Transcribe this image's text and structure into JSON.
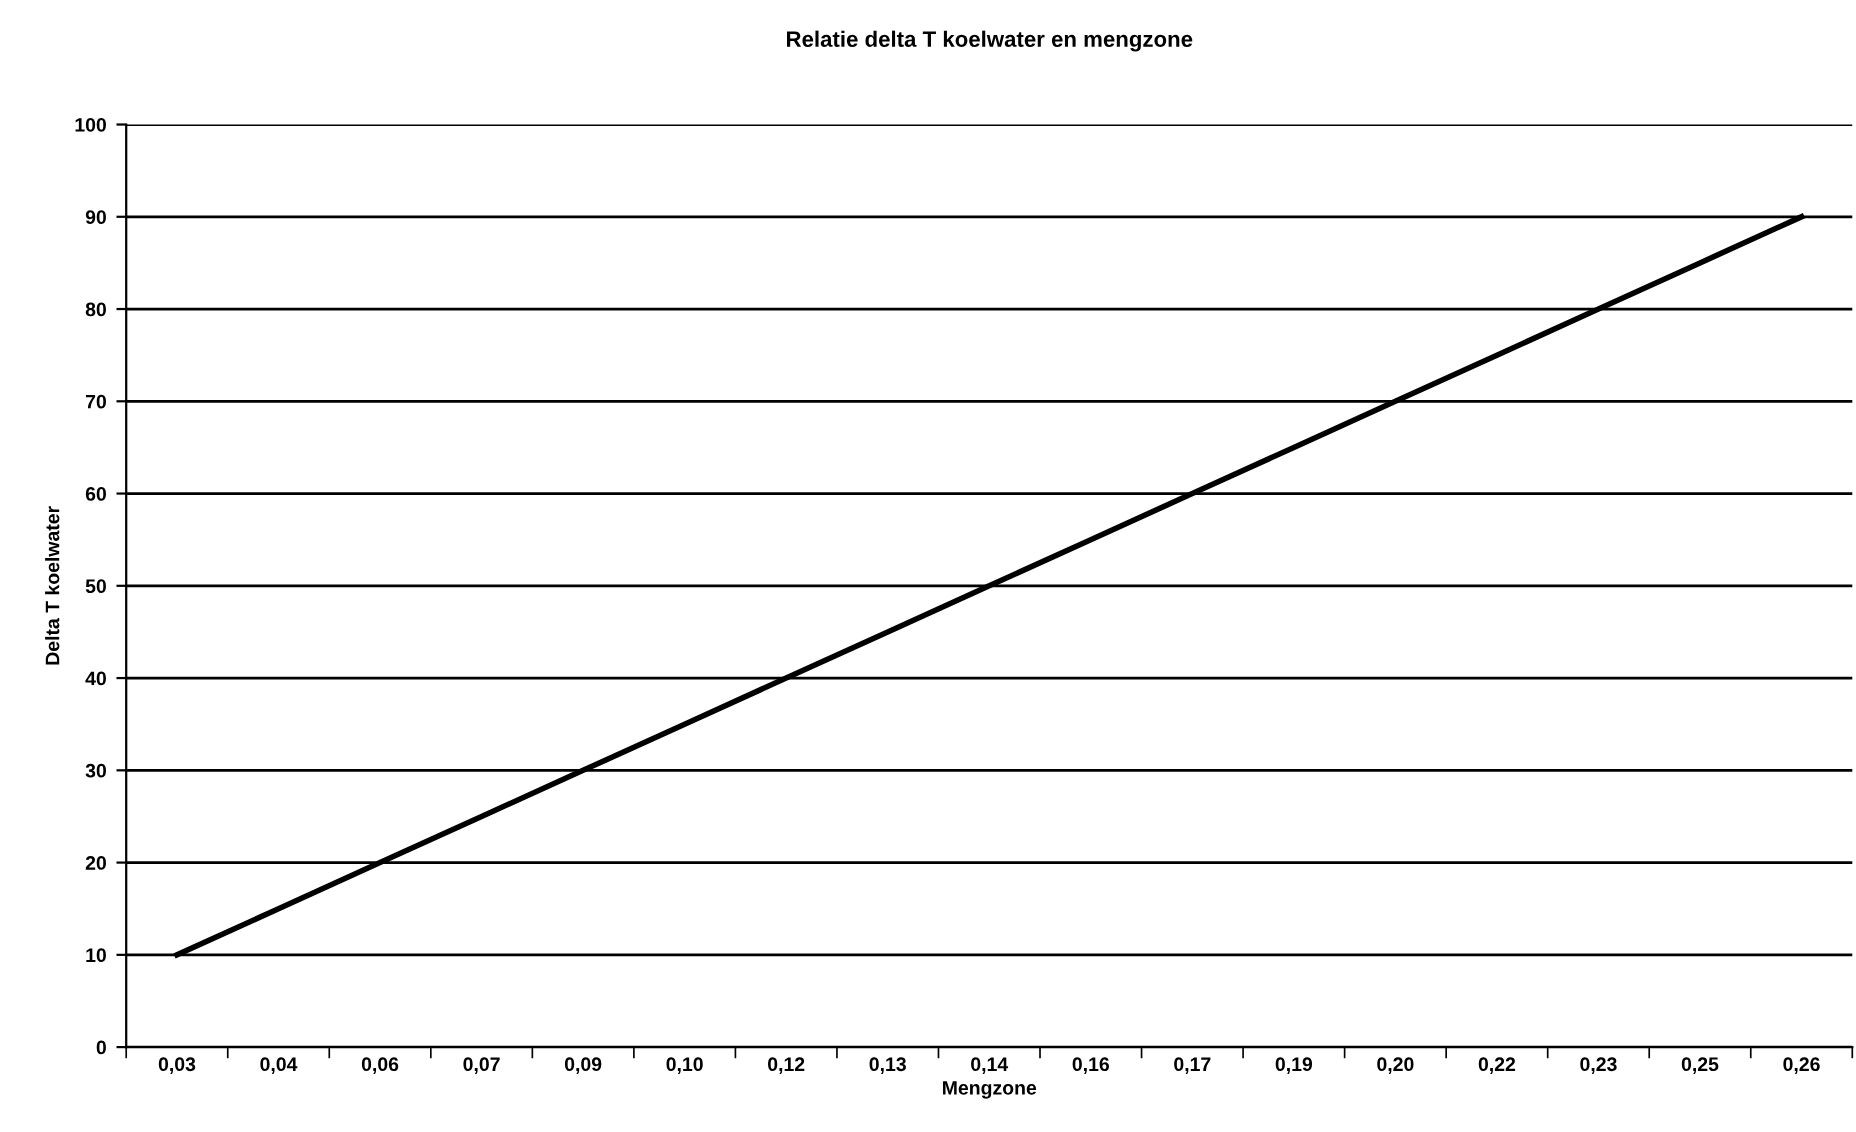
{
  "chart_data": {
    "type": "line",
    "title": "Relatie delta T koelwater en mengzone",
    "xlabel": "Mengzone",
    "ylabel": "Delta T koelwater",
    "categories": [
      "0,03",
      "0,04",
      "0,06",
      "0,07",
      "0,09",
      "0,10",
      "0,12",
      "0,13",
      "0,14",
      "0,16",
      "0,17",
      "0,19",
      "0,20",
      "0,22",
      "0,23",
      "0,25",
      "0,26"
    ],
    "series": [
      {
        "color": "#000000",
        "values": [
          10,
          15,
          20,
          25,
          30,
          35,
          40,
          45,
          50,
          55,
          60,
          65,
          70,
          75,
          80,
          85,
          90
        ]
      }
    ],
    "ylim": [
      0,
      100
    ],
    "yticks": [
      0,
      10,
      20,
      30,
      40,
      50,
      60,
      70,
      80,
      90,
      100
    ],
    "grid": "y",
    "marker": "none",
    "line_style": "solid"
  }
}
